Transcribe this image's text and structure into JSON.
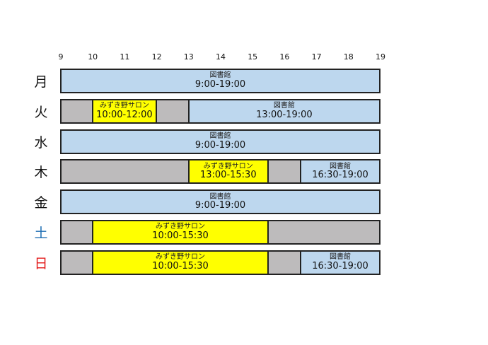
{
  "axis": {
    "start_hour": 9,
    "end_hour": 19,
    "ticks": [
      "9",
      "10",
      "11",
      "12",
      "13",
      "14",
      "15",
      "16",
      "17",
      "18",
      "19"
    ]
  },
  "colors": {
    "library": "#bdd7ee",
    "salon": "#ffff00",
    "closed": "#bdbbbc",
    "saturday": "#1f6fb4",
    "sunday": "#e31b1b",
    "weekday": "#111111"
  },
  "rows": [
    {
      "day": "月",
      "color_key": "weekday",
      "blocks": [
        {
          "kind": "library",
          "name": "図書館",
          "start": "9:00",
          "end": "19:00",
          "time": "9:00-19:00"
        }
      ]
    },
    {
      "day": "火",
      "color_key": "weekday",
      "blocks": [
        {
          "kind": "salon",
          "name": "みずき野サロン",
          "start": "10:00",
          "end": "12:00",
          "time": "10:00-12:00"
        },
        {
          "kind": "library",
          "name": "図書館",
          "start": "13:00",
          "end": "19:00",
          "time": "13:00-19:00"
        }
      ]
    },
    {
      "day": "水",
      "color_key": "weekday",
      "blocks": [
        {
          "kind": "library",
          "name": "図書館",
          "start": "9:00",
          "end": "19:00",
          "time": "9:00-19:00"
        }
      ]
    },
    {
      "day": "木",
      "color_key": "weekday",
      "blocks": [
        {
          "kind": "salon",
          "name": "みずき野サロン",
          "start": "13:00",
          "end": "15:30",
          "time": "13:00-15:30"
        },
        {
          "kind": "library",
          "name": "図書館",
          "start": "16:30",
          "end": "19:00",
          "time": "16:30-19:00"
        }
      ]
    },
    {
      "day": "金",
      "color_key": "weekday",
      "blocks": [
        {
          "kind": "library",
          "name": "図書館",
          "start": "9:00",
          "end": "19:00",
          "time": "9:00-19:00"
        }
      ]
    },
    {
      "day": "土",
      "color_key": "saturday",
      "blocks": [
        {
          "kind": "salon",
          "name": "みずき野サロン",
          "start": "10:00",
          "end": "15:30",
          "time": "10:00-15:30"
        }
      ]
    },
    {
      "day": "日",
      "color_key": "sunday",
      "blocks": [
        {
          "kind": "salon",
          "name": "みずき野サロン",
          "start": "10:00",
          "end": "15:30",
          "time": "10:00-15:30"
        },
        {
          "kind": "library",
          "name": "図書館",
          "start": "16:30",
          "end": "19:00",
          "time": "16:30-19:00"
        }
      ]
    }
  ]
}
